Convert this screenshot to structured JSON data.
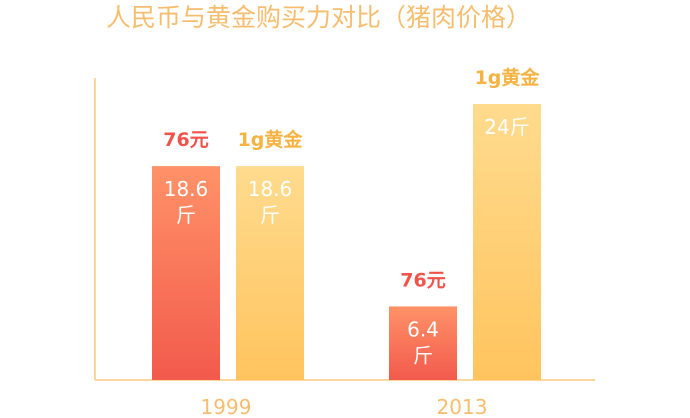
{
  "chart_data": {
    "type": "bar",
    "title": "人民币与黄金购买力对比（猪肉价格）",
    "categories": [
      "1999",
      "2013"
    ],
    "series": [
      {
        "color": "#f25a4c",
        "color_light": "#ff9268",
        "label_color": "#f0534a",
        "values": [
          18.6,
          6.4
        ],
        "top_labels": [
          "76元",
          "76元"
        ],
        "bar_labels": [
          [
            "18.6",
            "斤"
          ],
          [
            "6.4",
            "斤"
          ]
        ]
      },
      {
        "color": "#ffc45e",
        "color_light": "#ffdb8e",
        "label_color": "#f5b342",
        "values": [
          18.6,
          24
        ],
        "top_labels": [
          "1g黄金",
          "1g黄金"
        ],
        "bar_labels": [
          [
            "18.6",
            "斤"
          ],
          [
            "24斤"
          ]
        ]
      }
    ],
    "ylim": [
      0,
      24
    ],
    "grid": false,
    "axis_color": "#fbd79c"
  }
}
